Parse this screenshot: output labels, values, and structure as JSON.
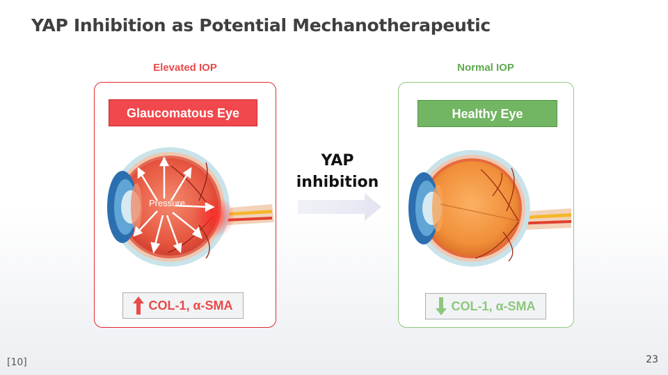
{
  "slide": {
    "title": "YAP Inhibition as Potential Mechanotherapeutic",
    "reference": "[10]",
    "page_number": "23"
  },
  "left_panel": {
    "caption": "Elevated IOP",
    "label": "Glaucomatous Eye",
    "eye_text": "Pressure",
    "markers": "COL-1, α-SMA",
    "marker_direction": "up",
    "accent_color": "#e84a4a",
    "border_color": "#e0262d"
  },
  "center": {
    "label_line1": "YAP",
    "label_line2": "inhibition",
    "arrow_icon": "right-arrow-icon"
  },
  "right_panel": {
    "caption": "Normal IOP",
    "label": "Healthy Eye",
    "markers": "COL-1, α-SMA",
    "marker_direction": "down",
    "accent_color": "#72b563",
    "border_color": "#8ec77f"
  }
}
